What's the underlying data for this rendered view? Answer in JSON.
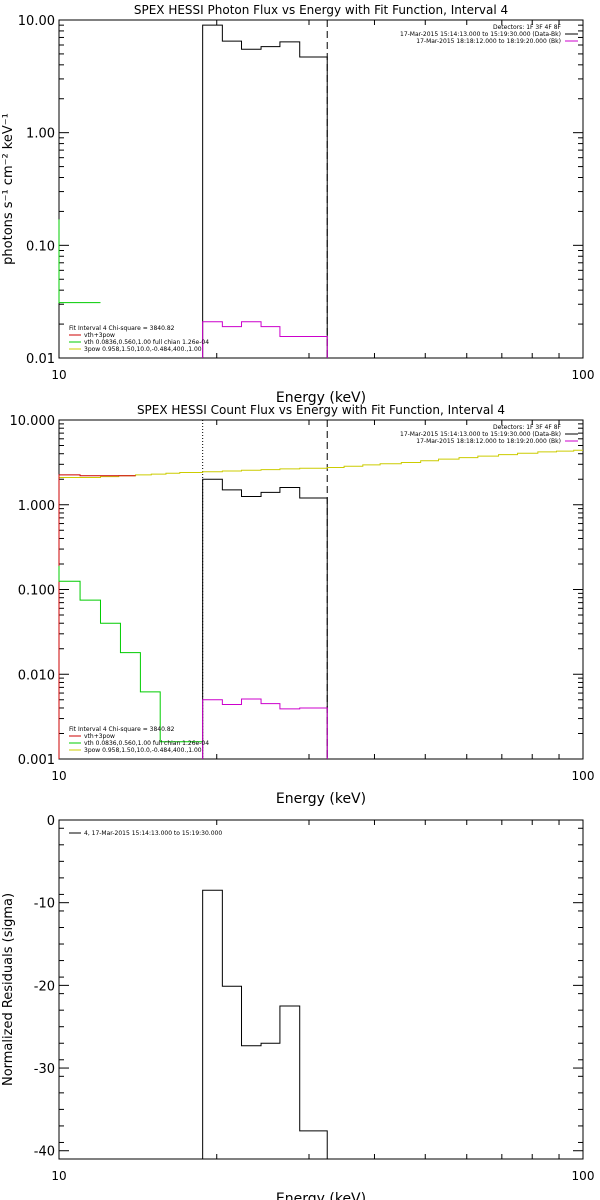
{
  "chart_data": [
    {
      "type": "line",
      "title": "SPEX HESSI Photon Flux vs Energy with Fit Function, Interval 4",
      "xlabel": "Energy (keV)",
      "ylabel": "photons s⁻¹ cm⁻² keV⁻¹",
      "xscale": "log",
      "yscale": "log",
      "xlim": [
        10,
        100
      ],
      "ylim": [
        0.01,
        10
      ],
      "xticks": [
        "10",
        "100"
      ],
      "yticks": [
        {
          "v": 10,
          "label": "10.00"
        },
        {
          "v": 1,
          "label": "1.00"
        },
        {
          "v": 0.1,
          "label": "0.10"
        },
        {
          "v": 0.01,
          "label": "0.01"
        }
      ],
      "header": [
        "Detectors: 1F 3F 4F 8F",
        "17-Mar-2015 15:14:13.000 to 15:19:30.000 (Data-Bk)",
        "17-Mar-2015 18:18:12.000 to 18:19:20.000 (Bk)"
      ],
      "header_colors": [
        "",
        "#000000",
        "#cc00cc"
      ],
      "legend": [
        {
          "label": "Fit Interval 4   Chi-square = 3840.82",
          "color": ""
        },
        {
          "label": "vth+3pow",
          "color": "#cc0000"
        },
        {
          "label": "vth 0.0836,0.560,1.00  full chian 1.26e-04",
          "color": "#00cc00"
        },
        {
          "label": "3pow 0.958,1.50,10.0,-0.484,400.,1.00",
          "color": "#cccc00"
        }
      ],
      "vlines": [
        {
          "x": 32.5,
          "style": "dashed"
        }
      ],
      "series": [
        {
          "color": "#000000",
          "edges": [
            18.8,
            20.5,
            22.3,
            24.3,
            26.4,
            28.8,
            32.5
          ],
          "values": [
            9.0,
            6.5,
            5.5,
            5.8,
            6.4,
            4.7
          ]
        },
        {
          "color": "#cc00cc",
          "edges": [
            18.8,
            20.5,
            22.3,
            24.3,
            26.4,
            28.8,
            32.5
          ],
          "values": [
            0.021,
            0.019,
            0.021,
            0.019,
            0.0155,
            0.0155
          ]
        },
        {
          "color": "#00cc00",
          "edges": [
            10,
            10.97,
            12.0
          ],
          "values": [
            0.031,
            0.031
          ],
          "lead": 0.17
        }
      ]
    },
    {
      "type": "line",
      "title": "SPEX HESSI Count Flux vs Energy with Fit Function, Interval 4",
      "xlabel": "Energy (keV)",
      "ylabel": "",
      "xscale": "log",
      "yscale": "log",
      "xlim": [
        10,
        100
      ],
      "ylim": [
        0.001,
        10
      ],
      "xticks": [
        "10",
        "100"
      ],
      "yticks": [
        {
          "v": 10,
          "label": "10.000"
        },
        {
          "v": 1,
          "label": "1.000"
        },
        {
          "v": 0.1,
          "label": "0.100"
        },
        {
          "v": 0.01,
          "label": "0.010"
        },
        {
          "v": 0.001,
          "label": "0.001"
        }
      ],
      "header": [
        "Detectors: 1F 3F 4F 8F",
        "17-Mar-2015 15:14:13.000 to 15:19:30.000 (Data-Bk)",
        "17-Mar-2015 18:18:12.000 to 18:19:20.000 (Bk)"
      ],
      "header_colors": [
        "",
        "#000000",
        "#cc00cc"
      ],
      "legend": [
        {
          "label": "Fit Interval 4   Chi-square = 3840.82",
          "color": ""
        },
        {
          "label": "vth+3pow",
          "color": "#cc0000"
        },
        {
          "label": "vth 0.0836,0.560,1.00  full chian 1.26e-04",
          "color": "#00cc00"
        },
        {
          "label": "3pow 0.958,1.50,10.0,-0.484,400.,1.00",
          "color": "#cccc00"
        }
      ],
      "vlines": [
        {
          "x": 18.8,
          "style": "dotted"
        },
        {
          "x": 32.5,
          "style": "dashed"
        }
      ],
      "series": [
        {
          "color": "#cccc00",
          "edges": [
            10,
            11,
            12,
            13,
            14,
            15,
            16,
            17,
            18.8,
            20.5,
            22.3,
            24.3,
            26.4,
            28.8,
            32.5,
            35,
            38,
            41,
            45,
            49,
            53,
            58,
            63,
            69,
            75,
            82,
            89,
            96,
            100
          ],
          "values": [
            2.1,
            2.1,
            2.15,
            2.2,
            2.25,
            2.3,
            2.35,
            2.4,
            2.45,
            2.5,
            2.55,
            2.6,
            2.65,
            2.7,
            2.75,
            2.85,
            2.95,
            3.05,
            3.15,
            3.3,
            3.45,
            3.6,
            3.75,
            3.9,
            4.05,
            4.2,
            4.3,
            4.4
          ]
        },
        {
          "color": "#cc0000",
          "edges": [
            10,
            10.97,
            12.0,
            14.0
          ],
          "values": [
            2.25,
            2.2,
            2.2
          ]
        },
        {
          "color": "#000000",
          "edges": [
            18.8,
            20.5,
            22.3,
            24.3,
            26.4,
            28.8,
            32.5
          ],
          "values": [
            2.0,
            1.5,
            1.25,
            1.4,
            1.6,
            1.2
          ]
        },
        {
          "color": "#cc00cc",
          "edges": [
            18.8,
            20.5,
            22.3,
            24.3,
            26.4,
            28.8,
            32.5
          ],
          "values": [
            0.005,
            0.0044,
            0.0051,
            0.0045,
            0.0039,
            0.004
          ]
        },
        {
          "color": "#00cc00",
          "edges": [
            10,
            10.97,
            12.0,
            13.1,
            14.3,
            15.6,
            17.1,
            18.8
          ],
          "values": [
            0.125,
            0.075,
            0.04,
            0.018,
            0.0062,
            0.0016,
            0.0016
          ],
          "lead": 0.19
        }
      ]
    },
    {
      "type": "line",
      "title": "",
      "xlabel": "Energy (keV)",
      "ylabel": "Normalized Residuals (sigma)",
      "xscale": "log",
      "yscale": "linear",
      "xlim": [
        10,
        100
      ],
      "ylim": [
        -41,
        0
      ],
      "xticks": [
        "10",
        "100"
      ],
      "yticks": [
        {
          "v": 0,
          "label": "0"
        },
        {
          "v": -10,
          "label": "-10"
        },
        {
          "v": -20,
          "label": "-20"
        },
        {
          "v": -30,
          "label": "-30"
        },
        {
          "v": -40,
          "label": "-40"
        }
      ],
      "header": [],
      "header_colors": [],
      "legend": [
        {
          "label": "4, 17-Mar-2015 15:14:13.000 to 15:19:30.000",
          "color": "#000000"
        }
      ],
      "vlines": [],
      "series": [
        {
          "color": "#000000",
          "edges": [
            18.8,
            20.5,
            22.3,
            24.3,
            26.4,
            28.8,
            32.5
          ],
          "values": [
            -8.5,
            -20.1,
            -27.3,
            -27.0,
            -22.5,
            -37.6
          ]
        }
      ]
    }
  ]
}
